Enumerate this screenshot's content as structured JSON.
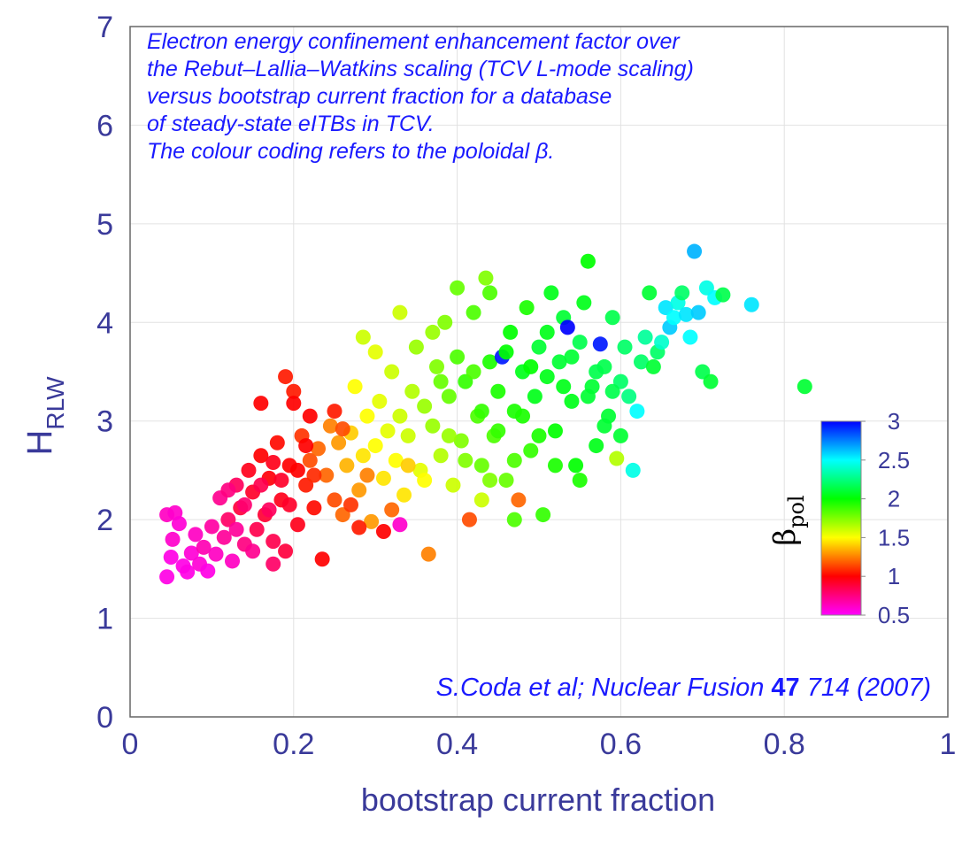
{
  "chart_data": {
    "type": "scatter",
    "title": "",
    "annotation_lines": [
      "Electron energy confinement enhancement factor over",
      "the Rebut–Lallia–Watkins scaling (TCV L-mode scaling)",
      "versus bootstrap current fraction for a database",
      "of steady-state eITBs in TCV.",
      "The colour coding refers to the poloidal β."
    ],
    "citation": {
      "before": "S.Coda et al; Nuclear Fusion ",
      "bold": "47",
      "after": " 714 (2007)"
    },
    "xlabel": "bootstrap current fraction",
    "ylabel": {
      "main": "H",
      "sub": "RLW"
    },
    "xlim": [
      0,
      1
    ],
    "ylim": [
      0,
      7
    ],
    "xticks": [
      "0",
      "0.2",
      "0.4",
      "0.6",
      "0.8",
      "1"
    ],
    "yticks": [
      "0",
      "1",
      "2",
      "3",
      "4",
      "5",
      "6",
      "7"
    ],
    "grid": true,
    "colorbar": {
      "label_main": "β",
      "label_sub": "pol",
      "range": [
        0.5,
        3
      ],
      "ticks": [
        "0.5",
        "1",
        "1.5",
        "2",
        "2.5",
        "3"
      ],
      "colors": [
        "#ff00ff",
        "#ff0000",
        "#ffff00",
        "#00ff00",
        "#00ffff",
        "#0000ff"
      ]
    },
    "points": [
      {
        "x": 0.045,
        "y": 1.42,
        "c": 0.55
      },
      {
        "x": 0.05,
        "y": 1.62,
        "c": 0.55
      },
      {
        "x": 0.052,
        "y": 1.8,
        "c": 0.6
      },
      {
        "x": 0.045,
        "y": 2.05,
        "c": 0.62
      },
      {
        "x": 0.055,
        "y": 2.07,
        "c": 0.6
      },
      {
        "x": 0.06,
        "y": 1.96,
        "c": 0.58
      },
      {
        "x": 0.065,
        "y": 1.53,
        "c": 0.55
      },
      {
        "x": 0.07,
        "y": 1.47,
        "c": 0.55
      },
      {
        "x": 0.075,
        "y": 1.66,
        "c": 0.58
      },
      {
        "x": 0.08,
        "y": 1.85,
        "c": 0.62
      },
      {
        "x": 0.085,
        "y": 1.55,
        "c": 0.58
      },
      {
        "x": 0.09,
        "y": 1.72,
        "c": 0.65
      },
      {
        "x": 0.095,
        "y": 1.48,
        "c": 0.55
      },
      {
        "x": 0.1,
        "y": 1.93,
        "c": 0.68
      },
      {
        "x": 0.105,
        "y": 1.65,
        "c": 0.62
      },
      {
        "x": 0.11,
        "y": 2.22,
        "c": 0.72
      },
      {
        "x": 0.115,
        "y": 1.82,
        "c": 0.7
      },
      {
        "x": 0.12,
        "y": 2.0,
        "c": 0.8
      },
      {
        "x": 0.125,
        "y": 1.58,
        "c": 0.62
      },
      {
        "x": 0.13,
        "y": 2.35,
        "c": 0.82
      },
      {
        "x": 0.135,
        "y": 2.12,
        "c": 0.88
      },
      {
        "x": 0.14,
        "y": 1.75,
        "c": 0.75
      },
      {
        "x": 0.145,
        "y": 2.5,
        "c": 0.95
      },
      {
        "x": 0.15,
        "y": 2.28,
        "c": 0.92
      },
      {
        "x": 0.155,
        "y": 1.9,
        "c": 0.85
      },
      {
        "x": 0.16,
        "y": 2.65,
        "c": 1.0
      },
      {
        "x": 0.165,
        "y": 2.05,
        "c": 0.9
      },
      {
        "x": 0.17,
        "y": 2.42,
        "c": 0.98
      },
      {
        "x": 0.175,
        "y": 1.78,
        "c": 0.85
      },
      {
        "x": 0.18,
        "y": 2.78,
        "c": 1.02
      },
      {
        "x": 0.185,
        "y": 2.2,
        "c": 0.95
      },
      {
        "x": 0.19,
        "y": 3.45,
        "c": 1.05
      },
      {
        "x": 0.195,
        "y": 2.55,
        "c": 1.0
      },
      {
        "x": 0.2,
        "y": 3.3,
        "c": 1.05
      },
      {
        "x": 0.205,
        "y": 1.95,
        "c": 0.95
      },
      {
        "x": 0.21,
        "y": 2.85,
        "c": 1.1
      },
      {
        "x": 0.215,
        "y": 2.35,
        "c": 1.05
      },
      {
        "x": 0.22,
        "y": 2.6,
        "c": 1.15
      },
      {
        "x": 0.225,
        "y": 2.12,
        "c": 1.02
      },
      {
        "x": 0.23,
        "y": 2.72,
        "c": 1.2
      },
      {
        "x": 0.235,
        "y": 1.6,
        "c": 1.0
      },
      {
        "x": 0.24,
        "y": 2.45,
        "c": 1.2
      },
      {
        "x": 0.245,
        "y": 2.95,
        "c": 1.25
      },
      {
        "x": 0.25,
        "y": 2.2,
        "c": 1.15
      },
      {
        "x": 0.255,
        "y": 2.78,
        "c": 1.3
      },
      {
        "x": 0.26,
        "y": 2.05,
        "c": 1.2
      },
      {
        "x": 0.265,
        "y": 2.55,
        "c": 1.35
      },
      {
        "x": 0.27,
        "y": 2.88,
        "c": 1.4
      },
      {
        "x": 0.275,
        "y": 3.35,
        "c": 1.5
      },
      {
        "x": 0.28,
        "y": 2.3,
        "c": 1.3
      },
      {
        "x": 0.285,
        "y": 2.65,
        "c": 1.45
      },
      {
        "x": 0.29,
        "y": 3.05,
        "c": 1.5
      },
      {
        "x": 0.295,
        "y": 1.98,
        "c": 1.3
      },
      {
        "x": 0.3,
        "y": 2.75,
        "c": 1.5
      },
      {
        "x": 0.305,
        "y": 3.2,
        "c": 1.55
      },
      {
        "x": 0.31,
        "y": 2.42,
        "c": 1.45
      },
      {
        "x": 0.315,
        "y": 2.9,
        "c": 1.55
      },
      {
        "x": 0.32,
        "y": 3.5,
        "c": 1.6
      },
      {
        "x": 0.325,
        "y": 2.6,
        "c": 1.5
      },
      {
        "x": 0.33,
        "y": 3.05,
        "c": 1.6
      },
      {
        "x": 0.335,
        "y": 2.25,
        "c": 1.45
      },
      {
        "x": 0.34,
        "y": 2.85,
        "c": 1.6
      },
      {
        "x": 0.345,
        "y": 3.3,
        "c": 1.65
      },
      {
        "x": 0.35,
        "y": 3.75,
        "c": 1.7
      },
      {
        "x": 0.355,
        "y": 2.5,
        "c": 1.55
      },
      {
        "x": 0.36,
        "y": 3.15,
        "c": 1.7
      },
      {
        "x": 0.365,
        "y": 1.65,
        "c": 1.25
      },
      {
        "x": 0.37,
        "y": 2.95,
        "c": 1.7
      },
      {
        "x": 0.375,
        "y": 3.55,
        "c": 1.75
      },
      {
        "x": 0.38,
        "y": 2.65,
        "c": 1.65
      },
      {
        "x": 0.385,
        "y": 4.0,
        "c": 1.75
      },
      {
        "x": 0.39,
        "y": 3.25,
        "c": 1.8
      },
      {
        "x": 0.395,
        "y": 2.35,
        "c": 1.6
      },
      {
        "x": 0.4,
        "y": 3.65,
        "c": 1.85
      },
      {
        "x": 0.405,
        "y": 2.8,
        "c": 1.75
      },
      {
        "x": 0.41,
        "y": 3.4,
        "c": 1.9
      },
      {
        "x": 0.415,
        "y": 2.0,
        "c": 1.15
      },
      {
        "x": 0.42,
        "y": 4.1,
        "c": 1.85
      },
      {
        "x": 0.425,
        "y": 3.05,
        "c": 1.85
      },
      {
        "x": 0.43,
        "y": 2.55,
        "c": 1.8
      },
      {
        "x": 0.435,
        "y": 4.45,
        "c": 1.75
      },
      {
        "x": 0.44,
        "y": 3.6,
        "c": 1.95
      },
      {
        "x": 0.445,
        "y": 2.85,
        "c": 1.85
      },
      {
        "x": 0.45,
        "y": 3.3,
        "c": 1.95
      },
      {
        "x": 0.455,
        "y": 3.65,
        "c": 2.95
      },
      {
        "x": 0.46,
        "y": 2.4,
        "c": 1.8
      },
      {
        "x": 0.465,
        "y": 3.9,
        "c": 2.0
      },
      {
        "x": 0.47,
        "y": 3.1,
        "c": 1.95
      },
      {
        "x": 0.475,
        "y": 2.2,
        "c": 1.2
      },
      {
        "x": 0.48,
        "y": 3.5,
        "c": 2.05
      },
      {
        "x": 0.485,
        "y": 4.15,
        "c": 1.95
      },
      {
        "x": 0.49,
        "y": 2.7,
        "c": 1.9
      },
      {
        "x": 0.495,
        "y": 3.25,
        "c": 2.05
      },
      {
        "x": 0.5,
        "y": 3.75,
        "c": 2.1
      },
      {
        "x": 0.505,
        "y": 2.05,
        "c": 1.9
      },
      {
        "x": 0.51,
        "y": 3.45,
        "c": 2.05
      },
      {
        "x": 0.515,
        "y": 4.3,
        "c": 2.05
      },
      {
        "x": 0.52,
        "y": 2.9,
        "c": 2.0
      },
      {
        "x": 0.525,
        "y": 3.6,
        "c": 2.1
      },
      {
        "x": 0.53,
        "y": 4.05,
        "c": 2.1
      },
      {
        "x": 0.535,
        "y": 3.95,
        "c": 3.0
      },
      {
        "x": 0.54,
        "y": 3.2,
        "c": 2.05
      },
      {
        "x": 0.545,
        "y": 2.55,
        "c": 2.0
      },
      {
        "x": 0.55,
        "y": 3.8,
        "c": 2.15
      },
      {
        "x": 0.555,
        "y": 4.2,
        "c": 2.05
      },
      {
        "x": 0.56,
        "y": 4.62,
        "c": 2.0
      },
      {
        "x": 0.565,
        "y": 3.35,
        "c": 2.1
      },
      {
        "x": 0.57,
        "y": 2.75,
        "c": 2.05
      },
      {
        "x": 0.575,
        "y": 3.78,
        "c": 2.95
      },
      {
        "x": 0.58,
        "y": 3.55,
        "c": 2.15
      },
      {
        "x": 0.585,
        "y": 3.05,
        "c": 2.1
      },
      {
        "x": 0.59,
        "y": 4.05,
        "c": 2.15
      },
      {
        "x": 0.595,
        "y": 2.62,
        "c": 1.65
      },
      {
        "x": 0.6,
        "y": 3.4,
        "c": 2.2
      },
      {
        "x": 0.605,
        "y": 3.75,
        "c": 2.2
      },
      {
        "x": 0.61,
        "y": 3.25,
        "c": 2.25
      },
      {
        "x": 0.615,
        "y": 2.5,
        "c": 2.45
      },
      {
        "x": 0.62,
        "y": 3.1,
        "c": 2.5
      },
      {
        "x": 0.625,
        "y": 3.6,
        "c": 2.2
      },
      {
        "x": 0.63,
        "y": 3.85,
        "c": 2.3
      },
      {
        "x": 0.635,
        "y": 4.3,
        "c": 2.1
      },
      {
        "x": 0.64,
        "y": 3.55,
        "c": 2.1
      },
      {
        "x": 0.645,
        "y": 3.7,
        "c": 2.2
      },
      {
        "x": 0.65,
        "y": 3.8,
        "c": 2.4
      },
      {
        "x": 0.655,
        "y": 4.15,
        "c": 2.55
      },
      {
        "x": 0.66,
        "y": 3.95,
        "c": 2.6
      },
      {
        "x": 0.665,
        "y": 4.05,
        "c": 2.5
      },
      {
        "x": 0.67,
        "y": 4.2,
        "c": 2.45
      },
      {
        "x": 0.675,
        "y": 4.3,
        "c": 2.2
      },
      {
        "x": 0.68,
        "y": 4.08,
        "c": 2.55
      },
      {
        "x": 0.685,
        "y": 3.85,
        "c": 2.5
      },
      {
        "x": 0.69,
        "y": 4.72,
        "c": 2.65
      },
      {
        "x": 0.695,
        "y": 4.1,
        "c": 2.6
      },
      {
        "x": 0.7,
        "y": 3.5,
        "c": 2.15
      },
      {
        "x": 0.705,
        "y": 4.35,
        "c": 2.45
      },
      {
        "x": 0.71,
        "y": 3.4,
        "c": 2.1
      },
      {
        "x": 0.715,
        "y": 4.25,
        "c": 2.5
      },
      {
        "x": 0.725,
        "y": 4.28,
        "c": 2.15
      },
      {
        "x": 0.76,
        "y": 4.18,
        "c": 2.55
      },
      {
        "x": 0.825,
        "y": 3.35,
        "c": 2.1
      },
      {
        "x": 0.12,
        "y": 2.3,
        "c": 0.75
      },
      {
        "x": 0.13,
        "y": 1.9,
        "c": 0.7
      },
      {
        "x": 0.14,
        "y": 2.15,
        "c": 0.78
      },
      {
        "x": 0.15,
        "y": 1.68,
        "c": 0.72
      },
      {
        "x": 0.16,
        "y": 2.35,
        "c": 0.85
      },
      {
        "x": 0.17,
        "y": 2.1,
        "c": 0.82
      },
      {
        "x": 0.175,
        "y": 2.58,
        "c": 0.95
      },
      {
        "x": 0.185,
        "y": 2.4,
        "c": 0.92
      },
      {
        "x": 0.195,
        "y": 2.15,
        "c": 0.92
      },
      {
        "x": 0.205,
        "y": 2.5,
        "c": 1.0
      },
      {
        "x": 0.215,
        "y": 2.75,
        "c": 1.0
      },
      {
        "x": 0.225,
        "y": 2.45,
        "c": 1.08
      },
      {
        "x": 0.16,
        "y": 3.18,
        "c": 1.0
      },
      {
        "x": 0.175,
        "y": 1.55,
        "c": 0.8
      },
      {
        "x": 0.19,
        "y": 1.68,
        "c": 0.88
      },
      {
        "x": 0.2,
        "y": 3.18,
        "c": 1.0
      },
      {
        "x": 0.27,
        "y": 2.15,
        "c": 1.1
      },
      {
        "x": 0.28,
        "y": 1.92,
        "c": 1.05
      },
      {
        "x": 0.31,
        "y": 1.88,
        "c": 1.0
      },
      {
        "x": 0.32,
        "y": 2.1,
        "c": 1.2
      },
      {
        "x": 0.33,
        "y": 1.95,
        "c": 0.6
      },
      {
        "x": 0.25,
        "y": 3.1,
        "c": 1.05
      },
      {
        "x": 0.26,
        "y": 2.92,
        "c": 1.15
      },
      {
        "x": 0.29,
        "y": 2.45,
        "c": 1.25
      },
      {
        "x": 0.34,
        "y": 2.55,
        "c": 1.4
      },
      {
        "x": 0.36,
        "y": 2.4,
        "c": 1.5
      },
      {
        "x": 0.38,
        "y": 3.4,
        "c": 1.8
      },
      {
        "x": 0.39,
        "y": 2.85,
        "c": 1.7
      },
      {
        "x": 0.41,
        "y": 2.6,
        "c": 1.75
      },
      {
        "x": 0.42,
        "y": 3.5,
        "c": 1.85
      },
      {
        "x": 0.43,
        "y": 3.1,
        "c": 1.9
      },
      {
        "x": 0.44,
        "y": 2.4,
        "c": 1.75
      },
      {
        "x": 0.45,
        "y": 2.9,
        "c": 1.9
      },
      {
        "x": 0.46,
        "y": 3.7,
        "c": 2.0
      },
      {
        "x": 0.47,
        "y": 2.6,
        "c": 1.85
      },
      {
        "x": 0.48,
        "y": 3.05,
        "c": 1.95
      },
      {
        "x": 0.49,
        "y": 3.55,
        "c": 2.0
      },
      {
        "x": 0.5,
        "y": 2.85,
        "c": 1.95
      },
      {
        "x": 0.51,
        "y": 3.9,
        "c": 2.05
      },
      {
        "x": 0.52,
        "y": 2.55,
        "c": 1.95
      },
      {
        "x": 0.53,
        "y": 3.35,
        "c": 2.05
      },
      {
        "x": 0.54,
        "y": 3.65,
        "c": 2.1
      },
      {
        "x": 0.55,
        "y": 2.4,
        "c": 1.95
      },
      {
        "x": 0.56,
        "y": 3.25,
        "c": 2.1
      },
      {
        "x": 0.57,
        "y": 3.5,
        "c": 2.15
      },
      {
        "x": 0.58,
        "y": 2.95,
        "c": 2.1
      },
      {
        "x": 0.59,
        "y": 3.3,
        "c": 2.15
      },
      {
        "x": 0.6,
        "y": 2.85,
        "c": 2.1
      },
      {
        "x": 0.47,
        "y": 2.0,
        "c": 1.85
      },
      {
        "x": 0.43,
        "y": 2.2,
        "c": 1.6
      },
      {
        "x": 0.37,
        "y": 3.9,
        "c": 1.7
      },
      {
        "x": 0.33,
        "y": 4.1,
        "c": 1.6
      },
      {
        "x": 0.44,
        "y": 4.3,
        "c": 1.85
      },
      {
        "x": 0.4,
        "y": 4.35,
        "c": 1.8
      },
      {
        "x": 0.22,
        "y": 3.05,
        "c": 1.0
      },
      {
        "x": 0.3,
        "y": 3.7,
        "c": 1.55
      },
      {
        "x": 0.285,
        "y": 3.85,
        "c": 1.6
      }
    ]
  }
}
